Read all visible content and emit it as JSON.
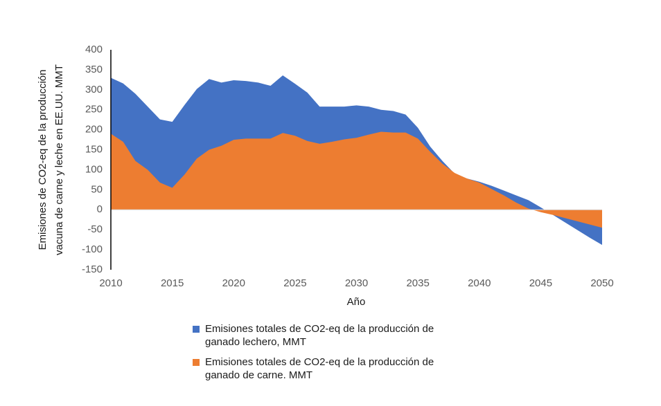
{
  "chart_data": {
    "type": "area",
    "xlabel": "Año",
    "ylabel": [
      "Emisiones de CO2-eq de la producción",
      "vacuna de carne y leche en EE.UU. MMT"
    ],
    "x": [
      2010,
      2011,
      2012,
      2013,
      2014,
      2015,
      2016,
      2017,
      2018,
      2019,
      2020,
      2021,
      2022,
      2023,
      2024,
      2025,
      2026,
      2027,
      2028,
      2029,
      2030,
      2031,
      2032,
      2033,
      2034,
      2035,
      2036,
      2037,
      2038,
      2039,
      2040,
      2041,
      2042,
      2043,
      2044,
      2045,
      2046,
      2047,
      2048,
      2049,
      2050
    ],
    "series": [
      {
        "name": "Emisiones totales de CO2-eq de la producción de ganado lechero, MMT",
        "color": "#4472c4",
        "values": [
          330,
          316,
          290,
          258,
          226,
          220,
          262,
          302,
          327,
          318,
          324,
          322,
          318,
          310,
          336,
          315,
          293,
          258,
          258,
          258,
          261,
          258,
          250,
          247,
          238,
          205,
          158,
          122,
          90,
          78,
          70,
          60,
          48,
          36,
          24,
          6,
          -13,
          -32,
          -51,
          -70,
          -88
        ]
      },
      {
        "name": "Emisiones totales de CO2-eq de la producción de ganado de carne. MMT",
        "color": "#ed7d31",
        "values": [
          190,
          170,
          122,
          100,
          68,
          55,
          88,
          128,
          150,
          160,
          175,
          178,
          178,
          178,
          192,
          185,
          172,
          165,
          170,
          176,
          180,
          188,
          195,
          193,
          193,
          178,
          145,
          115,
          92,
          78,
          68,
          52,
          36,
          18,
          3,
          -6,
          -13,
          -21,
          -29,
          -37,
          -45
        ]
      }
    ],
    "xlim": [
      2010,
      2050
    ],
    "xticks": [
      2010,
      2015,
      2020,
      2025,
      2030,
      2035,
      2040,
      2045,
      2050
    ],
    "ylim": [
      -150,
      400
    ],
    "yticks": [
      -150,
      -100,
      -50,
      0,
      50,
      100,
      150,
      200,
      250,
      300,
      350,
      400
    ],
    "grid": false
  }
}
